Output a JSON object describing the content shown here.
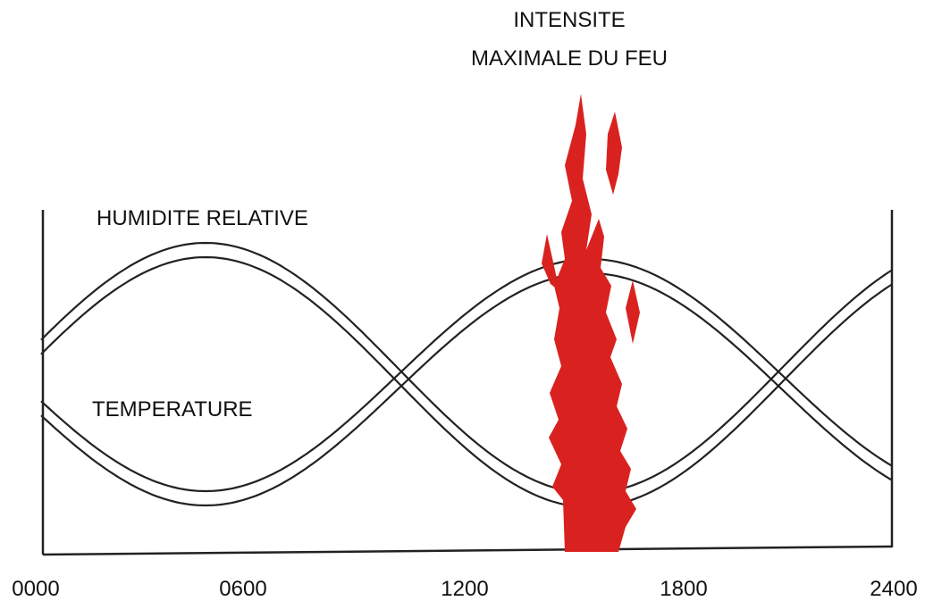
{
  "title": {
    "lines": [
      "INTENSITE",
      "MAXIMALE DU FEU"
    ]
  },
  "labels": {
    "humidity": "HUMIDITE RELATIVE",
    "temperature": "TEMPERATURE"
  },
  "time_axis": {
    "labels": [
      "0000",
      "0600",
      "1200",
      "1800",
      "2400"
    ]
  }
}
